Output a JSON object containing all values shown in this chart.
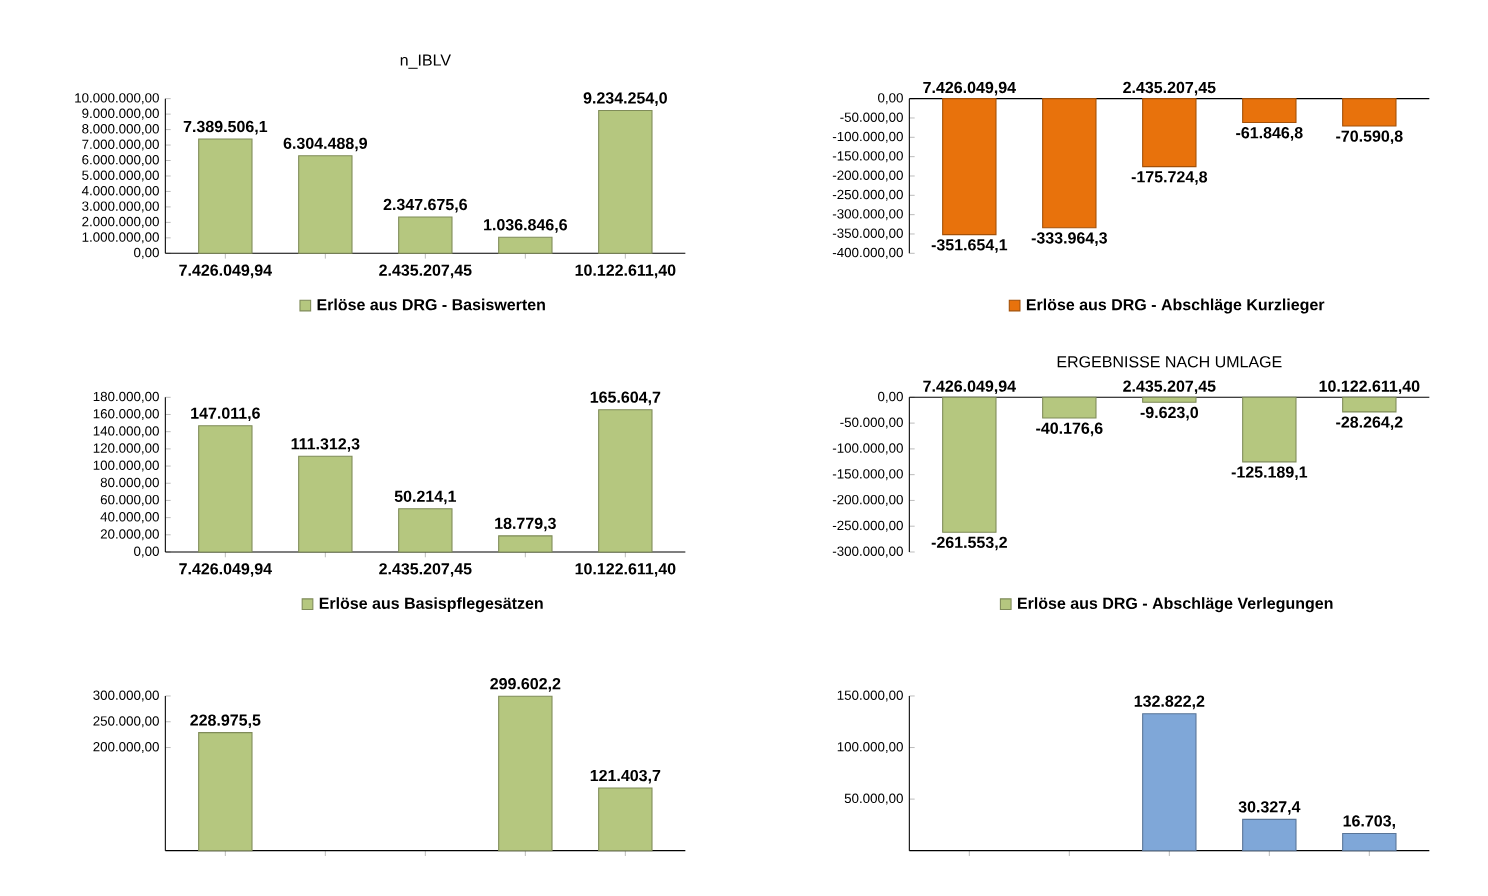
{
  "chart_data": [
    {
      "type": "bar",
      "title": "n_IBLV",
      "categories": [
        "7.426.049,94",
        null,
        "2.435.207,45",
        null,
        "10.122.611,40"
      ],
      "legend": "bottom",
      "series": [
        {
          "name": "Erlöse aus DRG - Basiswerten",
          "color": "#b5c77f",
          "values": [
            7389506.1,
            6304488.9,
            2347675.6,
            1036846.6,
            9234254.0
          ],
          "value_labels": [
            "7.389.506,1",
            "6.304.488,9",
            "2.347.675,6",
            "1.036.846,6",
            "9.234.254,0"
          ]
        }
      ],
      "ylim": [
        0,
        10000000
      ],
      "yticks": [
        {
          "value": 0,
          "label": "0,00"
        },
        {
          "value": 1000000,
          "label": "1.000.000,00"
        },
        {
          "value": 2000000,
          "label": "2.000.000,00"
        },
        {
          "value": 3000000,
          "label": "3.000.000,00"
        },
        {
          "value": 4000000,
          "label": "4.000.000,00"
        },
        {
          "value": 5000000,
          "label": "5.000.000,00"
        },
        {
          "value": 6000000,
          "label": "6.000.000,00"
        },
        {
          "value": 7000000,
          "label": "7.000.000,00"
        },
        {
          "value": 8000000,
          "label": "8.000.000,00"
        },
        {
          "value": 9000000,
          "label": "9.000.000,00"
        },
        {
          "value": 10000000,
          "label": "10.000.000,00"
        }
      ]
    },
    {
      "type": "bar",
      "categories": [
        "7.426.049,94",
        null,
        "2.435.207,45",
        null,
        null
      ],
      "legend": "bottom",
      "series": [
        {
          "name": "Erlöse aus DRG - Abschläge Kurzlieger",
          "color": "#e8720c",
          "values": [
            -351654.1,
            -333964.3,
            -175724.8,
            -61846.8,
            -70590.8
          ],
          "value_labels": [
            "-351.654,1",
            "-333.964,3",
            "-175.724,8",
            "-61.846,8",
            "-70.590,8"
          ]
        }
      ],
      "ylim": [
        -400000,
        0
      ],
      "yticks": [
        {
          "value": -400000,
          "label": "-400.000,00"
        },
        {
          "value": -350000,
          "label": "-350.000,00"
        },
        {
          "value": -300000,
          "label": "-300.000,00"
        },
        {
          "value": -250000,
          "label": "-250.000,00"
        },
        {
          "value": -200000,
          "label": "-200.000,00"
        },
        {
          "value": -150000,
          "label": "-150.000,00"
        },
        {
          "value": -100000,
          "label": "-100.000,00"
        },
        {
          "value": -50000,
          "label": "-50.000,00"
        },
        {
          "value": 0,
          "label": "0,00"
        }
      ]
    },
    {
      "type": "bar",
      "categories": [
        "7.426.049,94",
        null,
        "2.435.207,45",
        null,
        "10.122.611,40"
      ],
      "legend": "bottom",
      "series": [
        {
          "name": "Erlöse aus Basispflegesätzen",
          "color": "#b5c77f",
          "values": [
            147011.6,
            111312.3,
            50214.1,
            18779.3,
            165604.7
          ],
          "value_labels": [
            "147.011,6",
            "111.312,3",
            "50.214,1",
            "18.779,3",
            "165.604,7"
          ]
        }
      ],
      "ylim": [
        0,
        180000
      ],
      "yticks": [
        {
          "value": 0,
          "label": "0,00"
        },
        {
          "value": 20000,
          "label": "20.000,00"
        },
        {
          "value": 40000,
          "label": "40.000,00"
        },
        {
          "value": 60000,
          "label": "60.000,00"
        },
        {
          "value": 80000,
          "label": "80.000,00"
        },
        {
          "value": 100000,
          "label": "100.000,00"
        },
        {
          "value": 120000,
          "label": "120.000,00"
        },
        {
          "value": 140000,
          "label": "140.000,00"
        },
        {
          "value": 160000,
          "label": "160.000,00"
        },
        {
          "value": 180000,
          "label": "180.000,00"
        }
      ]
    },
    {
      "type": "bar",
      "title": "ERGEBNISSE NACH UMLAGE",
      "categories": [
        "7.426.049,94",
        null,
        "2.435.207,45",
        null,
        "10.122.611,40"
      ],
      "legend": "bottom",
      "series": [
        {
          "name": "Erlöse aus DRG - Abschläge Verlegungen",
          "color": "#b5c77f",
          "values": [
            -261553.2,
            -40176.6,
            -9623.0,
            -125189.1,
            -28264.2
          ],
          "value_labels": [
            "-261.553,2",
            "-40.176,6",
            "-9.623,0",
            "-125.189,1",
            "-28.264,2"
          ]
        }
      ],
      "ylim": [
        -300000,
        0
      ],
      "yticks": [
        {
          "value": -300000,
          "label": "-300.000,00"
        },
        {
          "value": -250000,
          "label": "-250.000,00"
        },
        {
          "value": -200000,
          "label": "-200.000,00"
        },
        {
          "value": -150000,
          "label": "-150.000,00"
        },
        {
          "value": -100000,
          "label": "-100.000,00"
        },
        {
          "value": -50000,
          "label": "-50.000,00"
        },
        {
          "value": 0,
          "label": "0,00"
        }
      ]
    },
    {
      "type": "bar",
      "categories": [
        null,
        null,
        null,
        null,
        null
      ],
      "series": [
        {
          "color": "#b5c77f",
          "values": [
            228975.5,
            null,
            null,
            299602.2,
            121403.7
          ],
          "value_labels": [
            "228.975,5",
            null,
            null,
            "299.602,2",
            "121.403,7"
          ]
        }
      ],
      "ylim": [
        0,
        300000
      ],
      "yticks": [
        {
          "value": 200000,
          "label": "200.000,00"
        },
        {
          "value": 250000,
          "label": "250.000,00"
        },
        {
          "value": 300000,
          "label": "300.000,00"
        }
      ]
    },
    {
      "type": "bar",
      "categories": [
        null,
        null,
        null,
        null,
        null
      ],
      "series": [
        {
          "color": "#7fa7d8",
          "values": [
            null,
            null,
            132822.2,
            30327.4,
            16703
          ],
          "value_labels": [
            null,
            null,
            "132.822,2",
            "30.327,4",
            "16.703,"
          ]
        }
      ],
      "ylim": [
        0,
        150000
      ],
      "yticks": [
        {
          "value": 50000,
          "label": "50.000,00"
        },
        {
          "value": 100000,
          "label": "100.000,00"
        },
        {
          "value": 150000,
          "label": "150.000,00"
        }
      ]
    }
  ]
}
